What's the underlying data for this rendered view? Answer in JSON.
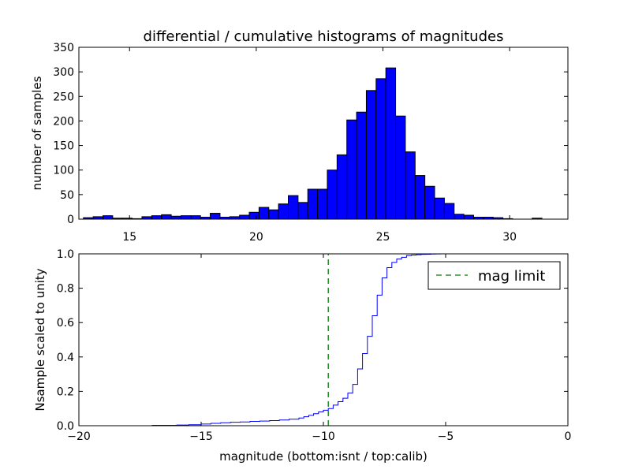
{
  "chart_data": [
    {
      "type": "bar",
      "title": "differential / cumulative histograms of magnitudes",
      "xlabel": "",
      "ylabel": "number of samples",
      "xlim": [
        13.0,
        32.3
      ],
      "ylim": [
        0,
        350
      ],
      "xticks": [
        "15",
        "20",
        "25",
        "30"
      ],
      "xtick_values": [
        15,
        20,
        25,
        30
      ],
      "yticks": [
        "0",
        "50",
        "100",
        "150",
        "200",
        "250",
        "300",
        "350"
      ],
      "ytick_values": [
        0,
        50,
        100,
        150,
        200,
        250,
        300,
        350
      ],
      "bin_width": 0.385,
      "bin_start": 13.18,
      "values": [
        3,
        5,
        7,
        2,
        2,
        1,
        5,
        7,
        9,
        6,
        7,
        7,
        4,
        12,
        4,
        5,
        8,
        14,
        24,
        19,
        31,
        48,
        34,
        61,
        61,
        100,
        131,
        202,
        218,
        262,
        286,
        308,
        210,
        137,
        89,
        67,
        43,
        32,
        10,
        8,
        4,
        4,
        3,
        1,
        0,
        0,
        2,
        0,
        0,
        0
      ],
      "bar_color": "#0000ff",
      "grid": false
    },
    {
      "type": "line",
      "title": "",
      "xlabel": "magnitude (bottom:isnt / top:calib)",
      "ylabel": "Nsample scaled to unity",
      "xlim": [
        -20,
        0
      ],
      "ylim": [
        0.0,
        1.0
      ],
      "xticks": [
        "−20",
        "−15",
        "−10",
        "−5",
        "0"
      ],
      "xtick_values": [
        -20,
        -15,
        -10,
        -5,
        0
      ],
      "yticks": [
        "0.0",
        "0.2",
        "0.4",
        "0.6",
        "0.8",
        "1.0"
      ],
      "ytick_values": [
        0.0,
        0.2,
        0.4,
        0.6,
        0.8,
        1.0
      ],
      "series": [
        {
          "name": "",
          "style": "steps",
          "color": "#0000ff",
          "x": [
            -20,
            -17.0,
            -16.0,
            -15.5,
            -15.0,
            -14.6,
            -14.2,
            -13.8,
            -13.4,
            -13.0,
            -12.6,
            -12.2,
            -11.8,
            -11.4,
            -11.0,
            -10.8,
            -10.6,
            -10.4,
            -10.2,
            -10.0,
            -9.8,
            -9.6,
            -9.4,
            -9.2,
            -9.0,
            -8.8,
            -8.6,
            -8.4,
            -8.2,
            -8.0,
            -7.8,
            -7.6,
            -7.4,
            -7.2,
            -7.0,
            -6.8,
            -6.6,
            -6.4,
            -6.2,
            -6.0,
            -5.8,
            -5.6,
            -5.4,
            -5.2,
            -5.0,
            -4.6,
            -4.0,
            -3.0,
            0
          ],
          "y": [
            0.0,
            0.002,
            0.004,
            0.006,
            0.01,
            0.014,
            0.017,
            0.02,
            0.022,
            0.025,
            0.027,
            0.03,
            0.033,
            0.038,
            0.045,
            0.052,
            0.06,
            0.07,
            0.08,
            0.09,
            0.1,
            0.12,
            0.14,
            0.16,
            0.19,
            0.24,
            0.33,
            0.42,
            0.52,
            0.64,
            0.76,
            0.86,
            0.92,
            0.95,
            0.97,
            0.98,
            0.99,
            0.993,
            0.995,
            0.997,
            0.998,
            0.999,
            0.9995,
            1.0,
            1.0,
            1.0,
            1.0,
            1.0,
            1.0
          ]
        },
        {
          "name": "mag limit",
          "style": "dashed",
          "color": "#008000",
          "x": [
            -9.8,
            -9.8
          ],
          "y": [
            0.0,
            1.0
          ]
        }
      ],
      "legend_position": "top-right",
      "grid": false
    }
  ]
}
